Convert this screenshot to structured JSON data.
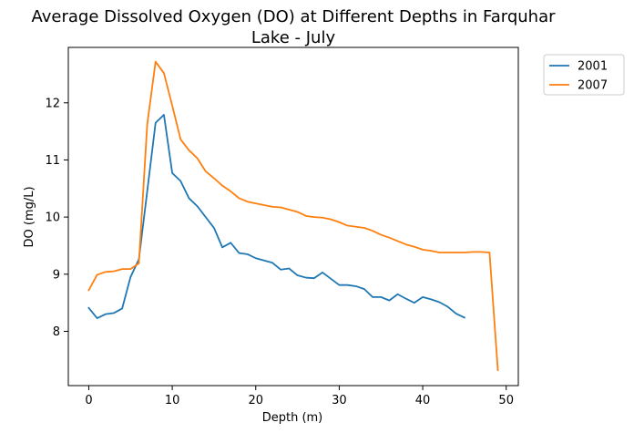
{
  "chart_data": {
    "type": "line",
    "title_lines": [
      "Average Dissolved Oxygen (DO) at Different Depths in Farquhar",
      "Lake - July"
    ],
    "xlabel": "Depth (m)",
    "ylabel": "DO (mg/L)",
    "xlim": [
      -2.45,
      51.45
    ],
    "ylim": [
      7.05,
      12.97
    ],
    "xticks": [
      0,
      10,
      20,
      30,
      40,
      50
    ],
    "yticks": [
      8,
      9,
      10,
      11,
      12
    ],
    "grid": false,
    "legend_position": "outside-top-right",
    "series": [
      {
        "name": "2001",
        "color": "#1f77b4",
        "x": [
          0,
          1,
          2,
          3,
          4,
          5,
          6,
          7,
          8,
          9,
          10,
          11,
          12,
          13,
          14,
          15,
          16,
          17,
          18,
          19,
          20,
          21,
          22,
          23,
          24,
          25,
          26,
          27,
          28,
          29,
          30,
          31,
          32,
          33,
          34,
          35,
          36,
          37,
          38,
          39,
          40,
          41,
          42,
          43,
          44,
          45
        ],
        "y": [
          8.41,
          8.23,
          8.3,
          8.32,
          8.4,
          8.95,
          9.26,
          10.45,
          11.65,
          11.79,
          10.77,
          10.63,
          10.33,
          10.19,
          10.0,
          9.81,
          9.47,
          9.55,
          9.37,
          9.35,
          9.28,
          9.24,
          9.2,
          9.08,
          9.1,
          8.98,
          8.94,
          8.93,
          9.03,
          8.92,
          8.81,
          8.81,
          8.79,
          8.74,
          8.6,
          8.6,
          8.54,
          8.65,
          8.57,
          8.5,
          8.6,
          8.56,
          8.51,
          8.43,
          8.31,
          8.24
        ]
      },
      {
        "name": "2007",
        "color": "#ff7f0e",
        "x": [
          0,
          1,
          2,
          3,
          4,
          5,
          6,
          7,
          8,
          9,
          10,
          11,
          12,
          13,
          14,
          15,
          16,
          17,
          18,
          19,
          20,
          21,
          22,
          23,
          24,
          25,
          26,
          27,
          28,
          29,
          30,
          31,
          32,
          33,
          34,
          35,
          36,
          37,
          38,
          39,
          40,
          41,
          42,
          43,
          44,
          45,
          46,
          47,
          48,
          49
        ],
        "y": [
          8.72,
          8.99,
          9.04,
          9.05,
          9.09,
          9.09,
          9.19,
          11.62,
          12.72,
          12.52,
          11.95,
          11.36,
          11.17,
          11.03,
          10.8,
          10.68,
          10.55,
          10.45,
          10.33,
          10.27,
          10.24,
          10.21,
          10.18,
          10.17,
          10.13,
          10.09,
          10.02,
          10.0,
          9.99,
          9.96,
          9.91,
          9.85,
          9.83,
          9.81,
          9.76,
          9.69,
          9.64,
          9.58,
          9.52,
          9.48,
          9.43,
          9.41,
          9.38,
          9.38,
          9.38,
          9.38,
          9.39,
          9.39,
          9.38,
          7.32
        ]
      }
    ]
  }
}
